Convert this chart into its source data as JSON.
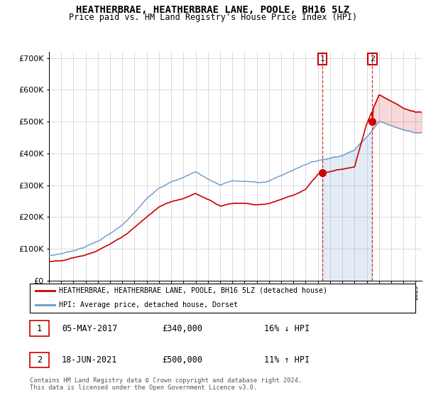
{
  "title": "HEATHERBRAE, HEATHERBRAE LANE, POOLE, BH16 5LZ",
  "subtitle": "Price paid vs. HM Land Registry's House Price Index (HPI)",
  "ylim": [
    0,
    720000
  ],
  "yticks": [
    0,
    100000,
    200000,
    300000,
    400000,
    500000,
    600000,
    700000
  ],
  "sale1_date": 2017.37,
  "sale1_price": 340000,
  "sale1_label": "1",
  "sale2_date": 2021.46,
  "sale2_price": 500000,
  "sale2_label": "2",
  "legend_line1": "HEATHERBRAE, HEATHERBRAE LANE, POOLE, BH16 5LZ (detached house)",
  "legend_line2": "HPI: Average price, detached house, Dorset",
  "table_row1": [
    "1",
    "05-MAY-2017",
    "£340,000",
    "16% ↓ HPI"
  ],
  "table_row2": [
    "2",
    "18-JUN-2021",
    "£500,000",
    "11% ↑ HPI"
  ],
  "footer": "Contains HM Land Registry data © Crown copyright and database right 2024.\nThis data is licensed under the Open Government Licence v3.0.",
  "red_color": "#cc0000",
  "blue_color": "#6699cc",
  "fill_blue": "#ddeeff",
  "background_color": "#ffffff",
  "hpi_anchor_years": [
    1995,
    1996,
    1997,
    1998,
    1999,
    2000,
    2001,
    2002,
    2003,
    2004,
    2005,
    2006,
    2007,
    2008,
    2009,
    2010,
    2011,
    2012,
    2013,
    2014,
    2015,
    2016,
    2017,
    2018,
    2019,
    2020,
    2021,
    2022,
    2023,
    2024,
    2025
  ],
  "hpi_anchor_values": [
    78000,
    85000,
    95000,
    108000,
    125000,
    148000,
    172000,
    210000,
    252000,
    290000,
    308000,
    322000,
    340000,
    318000,
    298000,
    310000,
    308000,
    303000,
    308000,
    325000,
    342000,
    362000,
    373000,
    382000,
    392000,
    408000,
    452000,
    500000,
    488000,
    475000,
    465000
  ],
  "red_anchor_years": [
    1995,
    1996,
    1997,
    1998,
    1999,
    2000,
    2001,
    2002,
    2003,
    2004,
    2005,
    2006,
    2007,
    2008,
    2009,
    2010,
    2011,
    2012,
    2013,
    2014,
    2015,
    2016,
    2017,
    2018,
    2019,
    2020,
    2021,
    2022,
    2023,
    2024,
    2025
  ],
  "red_anchor_values": [
    60000,
    65000,
    75000,
    85000,
    100000,
    118000,
    138000,
    168000,
    200000,
    232000,
    248000,
    260000,
    278000,
    258000,
    238000,
    248000,
    248000,
    243000,
    248000,
    262000,
    276000,
    295000,
    340000,
    350000,
    358000,
    365000,
    500000,
    590000,
    568000,
    545000,
    530000
  ]
}
